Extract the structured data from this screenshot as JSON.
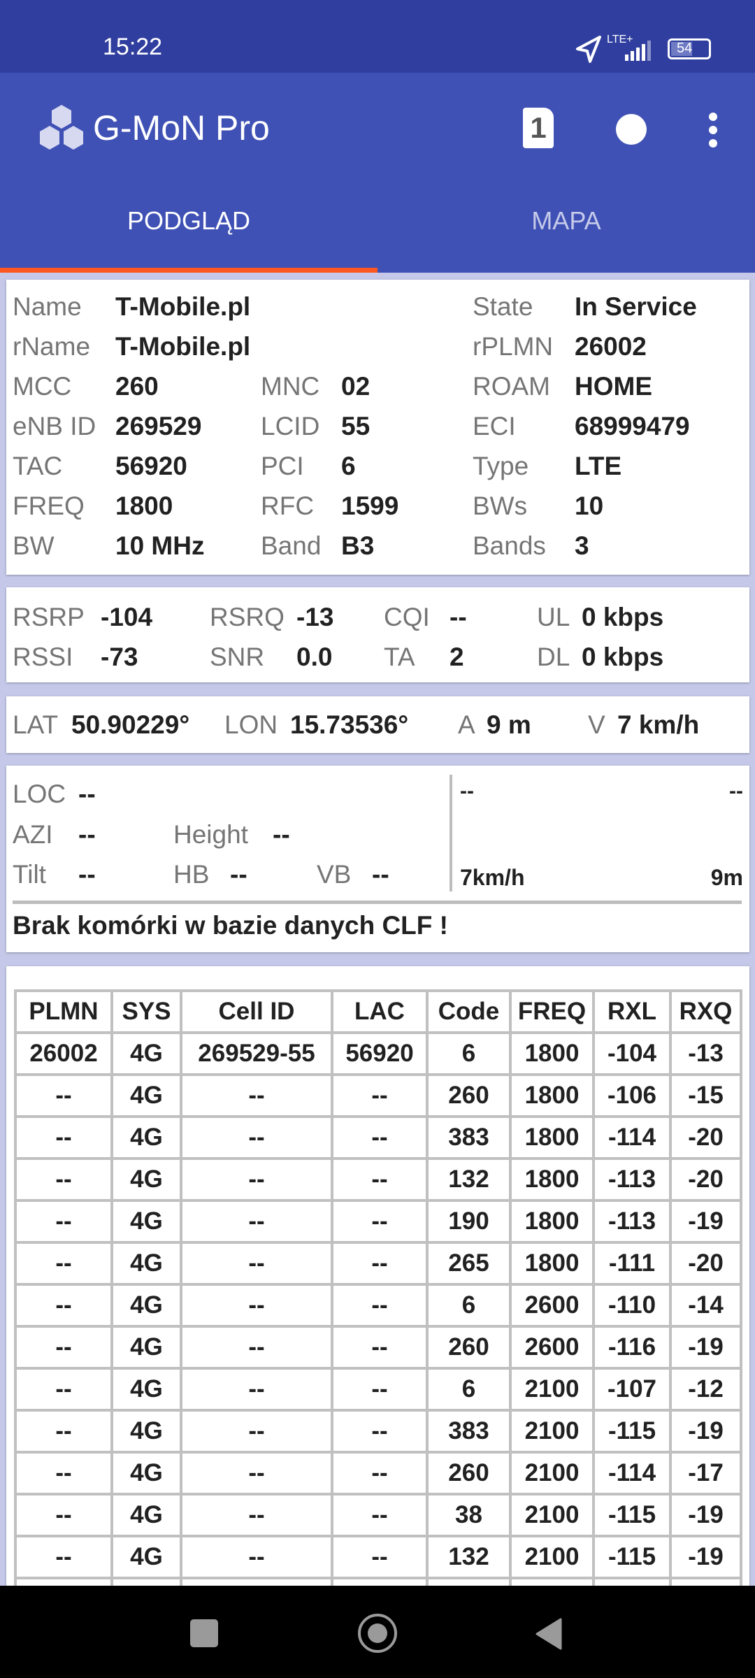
{
  "status_bar": {
    "time": "15:22",
    "network": "LTE+",
    "battery": "54"
  },
  "toolbar": {
    "title": "G-MoN Pro",
    "sim_badge": "1"
  },
  "tabs": [
    {
      "label": "PODGLĄD",
      "active": true
    },
    {
      "label": "MAPA",
      "active": false
    }
  ],
  "colors": {
    "primary": "#3f51b5",
    "primary_dark": "#303f9f",
    "accent": "#ff5722",
    "background": "#c5c8e8"
  },
  "cell": {
    "name_label": "Name",
    "name": "T-Mobile.pl",
    "state_label": "State",
    "state": "In Service",
    "rname_label": "rName",
    "rname": "T-Mobile.pl",
    "rplmn_label": "rPLMN",
    "rplmn": "26002",
    "mcc_label": "MCC",
    "mcc": "260",
    "mnc_label": "MNC",
    "mnc": "02",
    "roam_label": "ROAM",
    "roam": "HOME",
    "enb_label": "eNB ID",
    "enb": "269529",
    "lcid_label": "LCID",
    "lcid": "55",
    "eci_label": "ECI",
    "eci": "68999479",
    "tac_label": "TAC",
    "tac": "56920",
    "pci_label": "PCI",
    "pci": "6",
    "type_label": "Type",
    "type": "LTE",
    "freq_label": "FREQ",
    "freq": "1800",
    "rfc_label": "RFC",
    "rfc": "1599",
    "bws_label": "BWs",
    "bws": "10",
    "bw_label": "BW",
    "bw": "10 MHz",
    "band_label": "Band",
    "band": "B3",
    "bands_label": "Bands",
    "bands": "3"
  },
  "signal": {
    "rsrp_label": "RSRP",
    "rsrp": "-104",
    "rsrq_label": "RSRQ",
    "rsrq": "-13",
    "cqi_label": "CQI",
    "cqi": "--",
    "ul_label": "UL",
    "ul": "0 kbps",
    "rssi_label": "RSSI",
    "rssi": "-73",
    "snr_label": "SNR",
    "snr": "0.0",
    "ta_label": "TA",
    "ta": "2",
    "dl_label": "DL",
    "dl": "0 kbps"
  },
  "location": {
    "lat_label": "LAT",
    "lat": "50.90229°",
    "lon_label": "LON",
    "lon": "15.73536°",
    "a_label": "A",
    "a": "9 m",
    "v_label": "V",
    "v": "7 km/h"
  },
  "site": {
    "loc_label": "LOC",
    "loc": "--",
    "azi_label": "AZI",
    "azi": "--",
    "height_label": "Height",
    "height": "--",
    "tilt_label": "Tilt",
    "tilt": "--",
    "hb_label": "HB",
    "hb": "--",
    "vb_label": "VB",
    "vb": "--",
    "right_top_left": "--",
    "right_top_right": "--",
    "speed": "7km/h",
    "accuracy": "9m",
    "message": "Brak komórki w bazie danych CLF !"
  },
  "neighbors": {
    "headers": [
      "PLMN",
      "SYS",
      "Cell ID",
      "LAC",
      "Code",
      "FREQ",
      "RXL",
      "RXQ"
    ],
    "rows": [
      [
        "26002",
        "4G",
        "269529-55",
        "56920",
        "6",
        "1800",
        "-104",
        "-13"
      ],
      [
        "--",
        "4G",
        "--",
        "--",
        "260",
        "1800",
        "-106",
        "-15"
      ],
      [
        "--",
        "4G",
        "--",
        "--",
        "383",
        "1800",
        "-114",
        "-20"
      ],
      [
        "--",
        "4G",
        "--",
        "--",
        "132",
        "1800",
        "-113",
        "-20"
      ],
      [
        "--",
        "4G",
        "--",
        "--",
        "190",
        "1800",
        "-113",
        "-19"
      ],
      [
        "--",
        "4G",
        "--",
        "--",
        "265",
        "1800",
        "-111",
        "-20"
      ],
      [
        "--",
        "4G",
        "--",
        "--",
        "6",
        "2600",
        "-110",
        "-14"
      ],
      [
        "--",
        "4G",
        "--",
        "--",
        "260",
        "2600",
        "-116",
        "-19"
      ],
      [
        "--",
        "4G",
        "--",
        "--",
        "6",
        "2100",
        "-107",
        "-12"
      ],
      [
        "--",
        "4G",
        "--",
        "--",
        "383",
        "2100",
        "-115",
        "-19"
      ],
      [
        "--",
        "4G",
        "--",
        "--",
        "260",
        "2100",
        "-114",
        "-17"
      ],
      [
        "--",
        "4G",
        "--",
        "--",
        "38",
        "2100",
        "-115",
        "-19"
      ],
      [
        "--",
        "4G",
        "--",
        "--",
        "132",
        "2100",
        "-115",
        "-19"
      ],
      [
        "",
        "",
        "",
        "",
        "",
        "",
        "",
        ""
      ]
    ]
  }
}
